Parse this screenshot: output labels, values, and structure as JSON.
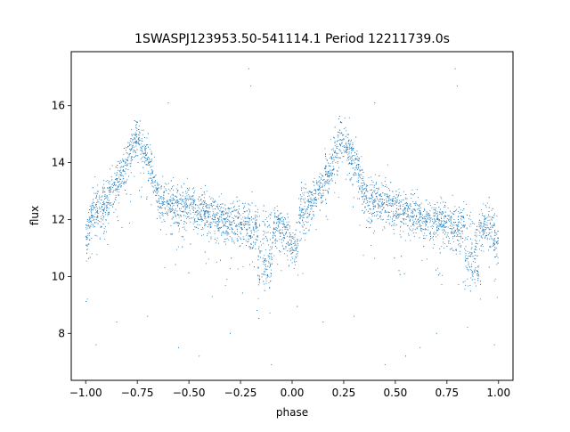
{
  "chart_data": {
    "type": "scatter",
    "title": "1SWASPJ123953.50-541114.1 Period 12211739.0s",
    "xlabel": "phase",
    "ylabel": "flux",
    "xlim": [
      -1.07,
      1.07
    ],
    "ylim": [
      6.35,
      17.9
    ],
    "xticks": [
      -1.0,
      -0.75,
      -0.5,
      -0.25,
      0.0,
      0.25,
      0.5,
      0.75,
      1.0
    ],
    "xtick_labels": [
      "−1.00",
      "−0.75",
      "−0.50",
      "−0.25",
      "0.00",
      "0.25",
      "0.50",
      "0.75",
      "1.00"
    ],
    "yticks": [
      8,
      10,
      12,
      14,
      16
    ],
    "ytick_labels": [
      "8",
      "10",
      "12",
      "14",
      "16"
    ],
    "grid": false,
    "legend": "none",
    "marker_color": "#1f77b4",
    "light_curve_profile": {
      "description_phase": [
        -1.0,
        -0.97,
        -0.92,
        -0.85,
        -0.8,
        -0.76,
        -0.72,
        -0.68,
        -0.64,
        -0.6,
        -0.5,
        -0.4,
        -0.3,
        -0.25,
        -0.2,
        -0.15,
        -0.1,
        -0.05,
        0.0,
        0.03
      ],
      "flux": [
        11.1,
        12.2,
        12.4,
        13.2,
        14.0,
        14.9,
        14.5,
        13.8,
        12.6,
        12.6,
        12.4,
        12.1,
        11.9,
        11.8,
        11.7,
        11.7,
        11.6,
        11.8,
        11.1,
        11.1
      ]
    },
    "dip_regions": [
      {
        "phase_center": -0.13,
        "flux_min": 9.7
      },
      {
        "phase_center": 0.87,
        "flux_min": 9.7
      }
    ],
    "outlier_points": [
      {
        "x": -0.21,
        "y": 17.3
      },
      {
        "x": 0.79,
        "y": 17.3
      },
      {
        "x": 0.8,
        "y": 16.7
      },
      {
        "x": -0.2,
        "y": 16.7
      },
      {
        "x": -0.6,
        "y": 16.1
      },
      {
        "x": 0.4,
        "y": 16.1
      },
      {
        "x": -0.1,
        "y": 6.9
      },
      {
        "x": 0.45,
        "y": 6.9
      },
      {
        "x": -0.45,
        "y": 7.2
      },
      {
        "x": 0.55,
        "y": 7.2
      },
      {
        "x": -0.85,
        "y": 8.4
      },
      {
        "x": 0.15,
        "y": 8.4
      },
      {
        "x": -0.95,
        "y": 7.6
      },
      {
        "x": 0.98,
        "y": 7.6
      },
      {
        "x": -0.7,
        "y": 8.6
      },
      {
        "x": 0.3,
        "y": 8.6
      },
      {
        "x": -0.3,
        "y": 8.0
      },
      {
        "x": 0.7,
        "y": 8.0
      },
      {
        "x": -0.55,
        "y": 7.5
      },
      {
        "x": 0.62,
        "y": 7.5
      }
    ]
  }
}
